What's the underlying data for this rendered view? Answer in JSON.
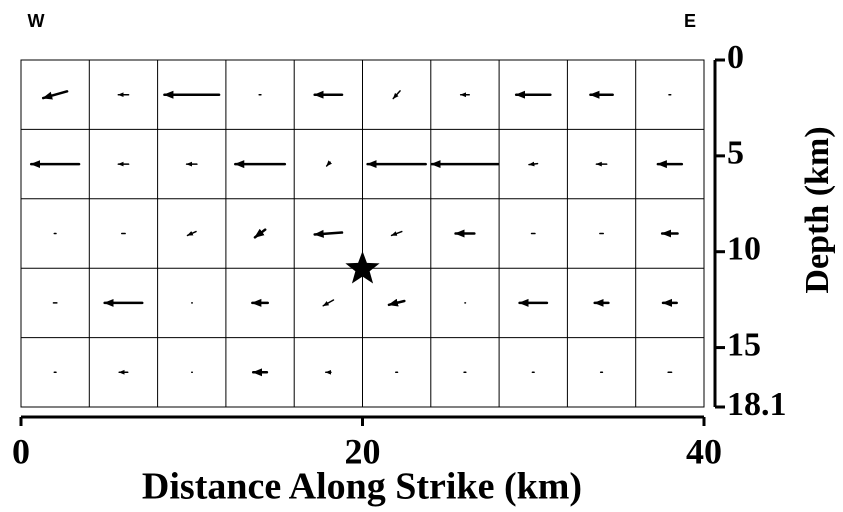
{
  "chart_data": {
    "type": "quiver",
    "left_label": "W",
    "right_label": "E",
    "xlabel": "Distance Along Strike (km)",
    "ylabel": "Depth (km)",
    "xlim": [
      0,
      40
    ],
    "ylim": [
      0,
      18.1
    ],
    "y_inverted": true,
    "xticks": [
      0,
      20,
      40
    ],
    "yticks": [
      0,
      5,
      10,
      15,
      18.1
    ],
    "xgrid": [
      4,
      8,
      12,
      16,
      20,
      24,
      28,
      32,
      36
    ],
    "ygrid": [
      3.62,
      7.24,
      10.86,
      14.48
    ],
    "color": "#000000",
    "hypocenter": {
      "x": 20,
      "y": 10.9
    },
    "arrows": [
      {
        "x": 2,
        "y": 1.81,
        "u": -1.4,
        "v": 0.35
      },
      {
        "x": 6,
        "y": 1.81,
        "u": -0.6,
        "v": 0
      },
      {
        "x": 10,
        "y": 1.81,
        "u": -3.2,
        "v": 0
      },
      {
        "x": 14,
        "y": 1.81,
        "u": -0.1,
        "v": 0
      },
      {
        "x": 18,
        "y": 1.81,
        "u": -1.6,
        "v": 0
      },
      {
        "x": 22,
        "y": 1.81,
        "u": -0.4,
        "v": 0.4
      },
      {
        "x": 26,
        "y": 1.81,
        "u": -0.5,
        "v": 0
      },
      {
        "x": 30,
        "y": 1.81,
        "u": -2.0,
        "v": 0
      },
      {
        "x": 34,
        "y": 1.81,
        "u": -1.3,
        "v": 0
      },
      {
        "x": 38,
        "y": 1.81,
        "u": -0.1,
        "v": 0
      },
      {
        "x": 2,
        "y": 5.43,
        "u": -2.8,
        "v": 0
      },
      {
        "x": 6,
        "y": 5.43,
        "u": -0.6,
        "v": 0
      },
      {
        "x": 10,
        "y": 5.43,
        "u": -0.6,
        "v": 0
      },
      {
        "x": 14,
        "y": 5.43,
        "u": -2.9,
        "v": 0
      },
      {
        "x": 18,
        "y": 5.43,
        "u": -0.2,
        "v": 0.2
      },
      {
        "x": 22,
        "y": 5.43,
        "u": -3.4,
        "v": 0
      },
      {
        "x": 26,
        "y": 5.43,
        "u": -3.9,
        "v": 0
      },
      {
        "x": 30,
        "y": 5.43,
        "u": -0.5,
        "v": 0.05
      },
      {
        "x": 34,
        "y": 5.43,
        "u": -0.6,
        "v": 0
      },
      {
        "x": 38,
        "y": 5.43,
        "u": -1.4,
        "v": 0
      },
      {
        "x": 2,
        "y": 9.05,
        "u": -0.1,
        "v": 0
      },
      {
        "x": 6,
        "y": 9.05,
        "u": -0.2,
        "v": 0
      },
      {
        "x": 10,
        "y": 9.05,
        "u": -0.5,
        "v": 0.2
      },
      {
        "x": 14,
        "y": 9.05,
        "u": -0.6,
        "v": 0.4
      },
      {
        "x": 18,
        "y": 9.05,
        "u": -1.6,
        "v": 0.1
      },
      {
        "x": 22,
        "y": 9.05,
        "u": -0.6,
        "v": 0.2
      },
      {
        "x": 26,
        "y": 9.05,
        "u": -1.1,
        "v": 0
      },
      {
        "x": 30,
        "y": 9.05,
        "u": -0.2,
        "v": 0
      },
      {
        "x": 34,
        "y": 9.05,
        "u": -0.2,
        "v": 0
      },
      {
        "x": 38,
        "y": 9.05,
        "u": -0.9,
        "v": 0
      },
      {
        "x": 2,
        "y": 12.67,
        "u": -0.2,
        "v": 0
      },
      {
        "x": 6,
        "y": 12.67,
        "u": -2.2,
        "v": 0
      },
      {
        "x": 10,
        "y": 12.67,
        "u": 0,
        "v": 0
      },
      {
        "x": 14,
        "y": 12.67,
        "u": -0.9,
        "v": 0
      },
      {
        "x": 18,
        "y": 12.67,
        "u": -0.6,
        "v": 0.3
      },
      {
        "x": 22,
        "y": 12.67,
        "u": -0.9,
        "v": 0.2
      },
      {
        "x": 26,
        "y": 12.67,
        "u": 0,
        "v": 0
      },
      {
        "x": 30,
        "y": 12.67,
        "u": -1.6,
        "v": 0
      },
      {
        "x": 34,
        "y": 12.67,
        "u": -0.8,
        "v": 0
      },
      {
        "x": 38,
        "y": 12.67,
        "u": -0.8,
        "v": 0
      },
      {
        "x": 2,
        "y": 16.29,
        "u": -0.1,
        "v": 0
      },
      {
        "x": 6,
        "y": 16.29,
        "u": -0.5,
        "v": 0
      },
      {
        "x": 10,
        "y": 16.29,
        "u": 0,
        "v": 0
      },
      {
        "x": 14,
        "y": 16.29,
        "u": -0.8,
        "v": 0
      },
      {
        "x": 18,
        "y": 16.29,
        "u": -0.3,
        "v": 0
      },
      {
        "x": 22,
        "y": 16.29,
        "u": -0.1,
        "v": 0
      },
      {
        "x": 26,
        "y": 16.29,
        "u": -0.1,
        "v": 0
      },
      {
        "x": 30,
        "y": 16.29,
        "u": -0.1,
        "v": 0
      },
      {
        "x": 34,
        "y": 16.29,
        "u": -0.1,
        "v": 0
      },
      {
        "x": 38,
        "y": 16.29,
        "u": -0.2,
        "v": 0
      }
    ]
  }
}
